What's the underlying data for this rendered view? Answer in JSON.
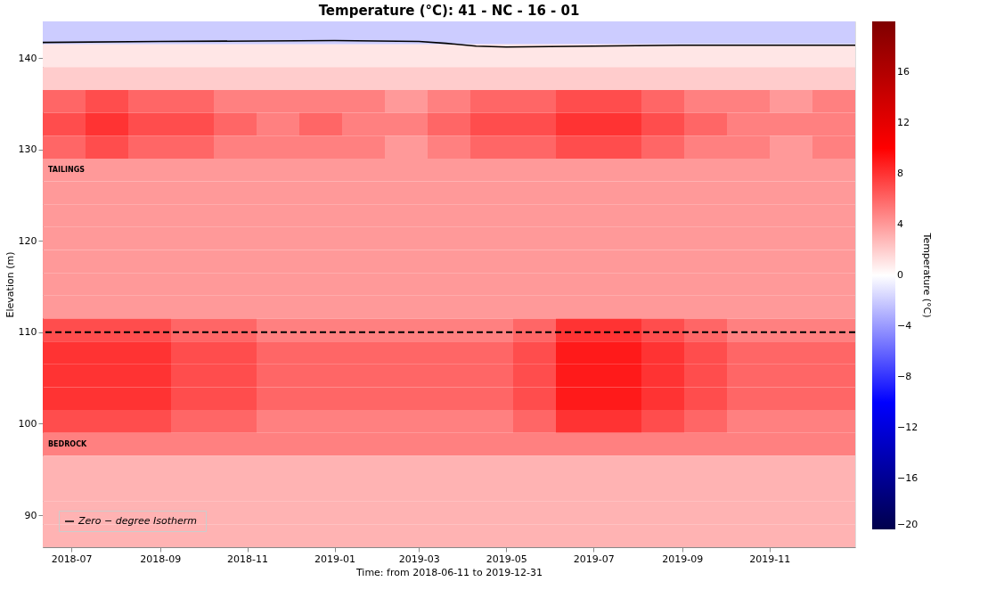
{
  "chart_data": {
    "type": "heatmap",
    "title": "Temperature (°C): 41 - NC - 16 - 01",
    "xlabel": "Time: from 2018-06-11 to 2019-12-31",
    "ylabel": "Elevation (m)",
    "clabel": "Temperature (°C)",
    "cells": [
      [
        -2,
        -2,
        -2,
        -2,
        -2,
        -2,
        -2,
        -2,
        -2,
        -2,
        -2,
        -2,
        -2,
        -2,
        -2,
        -2,
        -2,
        -2,
        -2
      ],
      [
        1,
        1,
        1,
        1,
        1,
        1,
        1,
        1,
        1,
        1,
        1,
        1,
        1,
        1,
        1,
        1,
        1,
        1,
        1
      ],
      [
        2,
        2,
        2,
        2,
        2,
        2,
        2,
        2,
        2,
        2,
        2,
        2,
        2,
        2,
        2,
        2,
        2,
        2,
        2
      ],
      [
        6,
        7,
        6,
        6,
        5,
        5,
        5,
        5,
        4,
        5,
        6,
        6,
        7,
        7,
        6,
        5,
        5,
        4,
        5
      ],
      [
        7,
        8,
        7,
        7,
        6,
        5,
        6,
        5,
        5,
        6,
        7,
        7,
        8,
        8,
        7,
        6,
        5,
        5,
        5
      ],
      [
        6,
        7,
        6,
        6,
        5,
        5,
        5,
        5,
        4,
        5,
        6,
        6,
        7,
        7,
        6,
        5,
        5,
        4,
        5
      ],
      [
        4,
        4,
        4,
        4,
        4,
        4,
        4,
        4,
        4,
        4,
        4,
        4,
        4,
        4,
        4,
        4,
        4,
        4,
        4
      ],
      [
        4,
        4,
        4,
        4,
        4,
        4,
        4,
        4,
        4,
        4,
        4,
        4,
        4,
        4,
        4,
        4,
        4,
        4,
        4
      ],
      [
        4,
        4,
        4,
        4,
        4,
        4,
        4,
        4,
        4,
        4,
        4,
        4,
        4,
        4,
        4,
        4,
        4,
        4,
        4
      ],
      [
        4,
        4,
        4,
        4,
        4,
        4,
        4,
        4,
        4,
        4,
        4,
        4,
        4,
        4,
        4,
        4,
        4,
        4,
        4
      ],
      [
        4,
        4,
        4,
        4,
        4,
        4,
        4,
        4,
        4,
        4,
        4,
        4,
        4,
        4,
        4,
        4,
        4,
        4,
        4
      ],
      [
        4,
        4,
        4,
        4,
        4,
        4,
        4,
        4,
        4,
        4,
        4,
        4,
        4,
        4,
        4,
        4,
        4,
        4,
        4
      ],
      [
        4,
        4,
        4,
        4,
        4,
        4,
        4,
        4,
        4,
        4,
        4,
        4,
        4,
        4,
        4,
        4,
        4,
        4,
        4
      ],
      [
        7,
        7,
        7,
        6,
        6,
        5,
        5,
        5,
        5,
        5,
        5,
        6,
        8,
        8,
        7,
        6,
        5,
        5,
        5
      ],
      [
        8,
        8,
        8,
        7,
        7,
        6,
        6,
        6,
        6,
        6,
        6,
        7,
        9,
        9,
        8,
        7,
        6,
        6,
        6
      ],
      [
        8,
        8,
        8,
        7,
        7,
        6,
        6,
        6,
        6,
        6,
        6,
        7,
        9,
        9,
        8,
        7,
        6,
        6,
        6
      ],
      [
        8,
        8,
        8,
        7,
        7,
        6,
        6,
        6,
        6,
        6,
        6,
        7,
        9,
        9,
        8,
        7,
        6,
        6,
        6
      ],
      [
        7,
        7,
        7,
        6,
        6,
        5,
        5,
        5,
        5,
        5,
        5,
        6,
        8,
        8,
        7,
        6,
        5,
        5,
        5
      ],
      [
        5,
        5,
        5,
        5,
        5,
        5,
        5,
        5,
        5,
        5,
        5,
        5,
        5,
        5,
        5,
        5,
        5,
        5,
        5
      ],
      [
        3,
        3,
        3,
        3,
        3,
        3,
        3,
        3,
        3,
        3,
        3,
        3,
        3,
        3,
        3,
        3,
        3,
        3,
        3
      ],
      [
        3,
        3,
        3,
        3,
        3,
        3,
        3,
        3,
        3,
        3,
        3,
        3,
        3,
        3,
        3,
        3,
        3,
        3,
        3
      ],
      [
        3,
        3,
        3,
        3,
        3,
        3,
        3,
        3,
        3,
        3,
        3,
        3,
        3,
        3,
        3,
        3,
        3,
        3,
        3
      ],
      [
        3,
        3,
        3,
        3,
        3,
        3,
        3,
        3,
        3,
        3,
        3,
        3,
        3,
        3,
        3,
        3,
        3,
        3,
        3
      ]
    ],
    "clim": [
      -20,
      20
    ],
    "cticks": [
      -20,
      -16,
      -12,
      -8,
      -4,
      0,
      4,
      8,
      12,
      16
    ],
    "xlim": [
      "2018-06-11",
      "2019-12-31"
    ],
    "xticks": [
      {
        "value": "2018-07-01",
        "label": "2018-07"
      },
      {
        "value": "2018-09-01",
        "label": "2018-09"
      },
      {
        "value": "2018-11-01",
        "label": "2018-11"
      },
      {
        "value": "2019-01-01",
        "label": "2019-01"
      },
      {
        "value": "2019-03-01",
        "label": "2019-03"
      },
      {
        "value": "2019-05-01",
        "label": "2019-05"
      },
      {
        "value": "2019-07-01",
        "label": "2019-07"
      },
      {
        "value": "2019-09-01",
        "label": "2019-09"
      },
      {
        "value": "2019-11-01",
        "label": "2019-11"
      }
    ],
    "ylim": [
      86.5,
      144
    ],
    "yticks": [
      90,
      100,
      110,
      120,
      130,
      140
    ],
    "series": [
      {
        "type": "line",
        "name": "Zero − degree  Isotherm",
        "color": "#000000",
        "x": [
          "2018-06-11",
          "2018-09-01",
          "2019-01-01",
          "2019-03-01",
          "2019-03-20",
          "2019-04-10",
          "2019-05-01",
          "2019-07-01",
          "2019-09-01",
          "2019-12-31"
        ],
        "values": [
          141.7,
          141.8,
          141.9,
          141.8,
          141.6,
          141.3,
          141.2,
          141.3,
          141.4,
          141.4
        ]
      }
    ],
    "ref_lines": [
      {
        "axis": "y",
        "value": 110,
        "color": "#000000",
        "line_style": "dashed"
      }
    ],
    "annotations": [
      "TAILINGS",
      "BEDROCK"
    ],
    "legend": "bottom left",
    "grid": false
  }
}
